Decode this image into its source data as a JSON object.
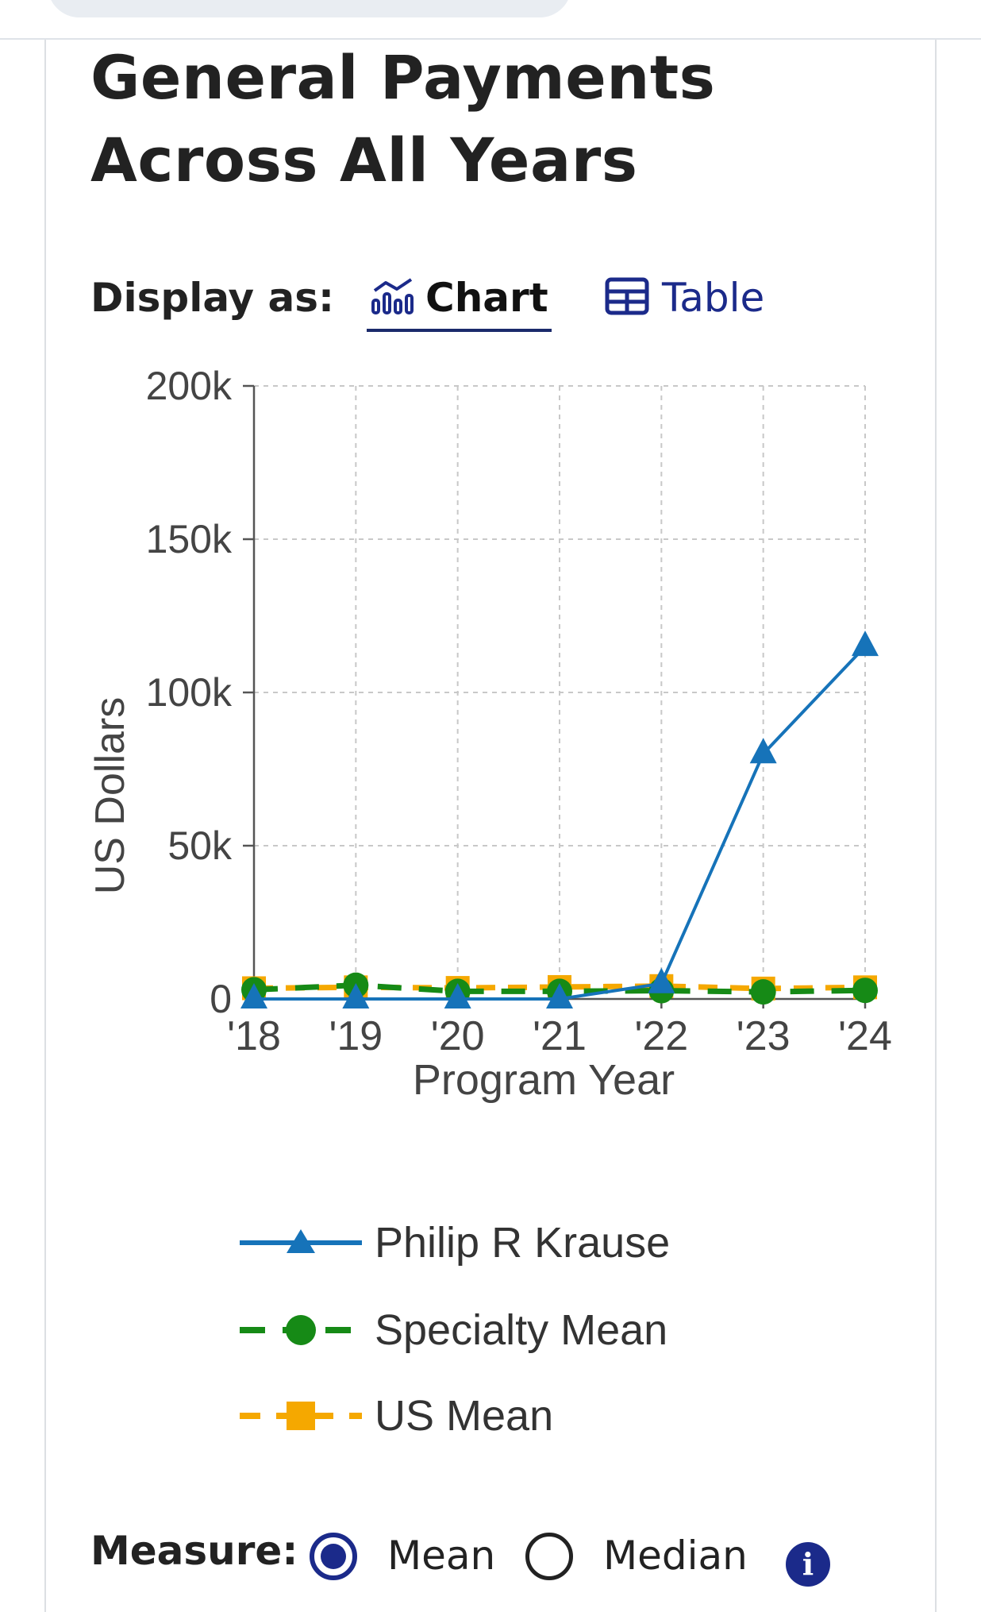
{
  "header": {
    "title": "General Payments Across All Years"
  },
  "display": {
    "label": "Display as:",
    "options": [
      {
        "label": "Chart",
        "icon": "bar-line-chart-icon",
        "selected": true
      },
      {
        "label": "Table",
        "icon": "table-icon",
        "selected": false
      }
    ]
  },
  "chart_data": {
    "type": "line",
    "xlabel": "Program Year",
    "ylabel": "US Dollars",
    "x": [
      "'18",
      "'19",
      "'20",
      "'21",
      "'22",
      "'23",
      "'24"
    ],
    "ylim": [
      0,
      200000
    ],
    "yticks": [
      0,
      50000,
      100000,
      150000,
      200000
    ],
    "yticklabels": [
      "0",
      "50k",
      "100k",
      "150k",
      "200k"
    ],
    "grid": true,
    "legend_position": "bottom",
    "series": [
      {
        "name": "US Mean",
        "values": [
          3500,
          3800,
          3600,
          3900,
          4200,
          3400,
          3800
        ],
        "color": "#f5a800",
        "marker": "square",
        "dash": "dashed"
      },
      {
        "name": "Specialty Mean",
        "values": [
          3000,
          4500,
          2500,
          2500,
          2700,
          2300,
          2800
        ],
        "color": "#168a16",
        "marker": "circle",
        "dash": "dashed"
      },
      {
        "name": "Philip R Krause",
        "values": [
          0,
          0,
          0,
          0,
          5000,
          80000,
          115000
        ],
        "color": "#1673b9",
        "marker": "triangle",
        "dash": "solid"
      }
    ]
  },
  "legend": {
    "items": [
      {
        "label": "Philip R Krause"
      },
      {
        "label": "Specialty Mean"
      },
      {
        "label": "US Mean"
      }
    ]
  },
  "measure": {
    "label": "Measure:",
    "options": [
      {
        "label": "Mean",
        "selected": true
      },
      {
        "label": "Median",
        "selected": false
      }
    ],
    "info_icon": "info-icon"
  }
}
